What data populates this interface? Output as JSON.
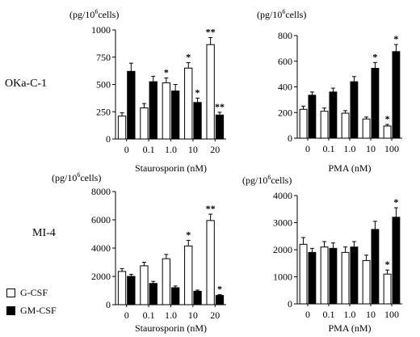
{
  "rows": [
    {
      "label": "OKa-C-1"
    },
    {
      "label": "MI-4"
    }
  ],
  "legend": [
    {
      "name": "G-CSF",
      "color": "#ffffff"
    },
    {
      "name": "GM-CSF",
      "color": "#000000"
    }
  ],
  "unit_label": {
    "prefix": "(pg/10",
    "exp": "6",
    "suffix": "cells)"
  },
  "chart_data": [
    {
      "type": "bar",
      "panel": "OKa-C-1 / Staurosporin",
      "xlabel": "Staurosporin (nM)",
      "categories": [
        "0",
        "0.1",
        "1.0",
        "10",
        "20"
      ],
      "ylim": [
        0,
        1000
      ],
      "yticks": [
        "0",
        "250",
        "500",
        "750",
        "1000"
      ],
      "series": [
        {
          "name": "G-CSF",
          "color": "#ffffff",
          "values": [
            210,
            285,
            515,
            650,
            865
          ],
          "errors": [
            30,
            40,
            45,
            50,
            65
          ],
          "sig": [
            "",
            "",
            "*",
            "*",
            "**"
          ]
        },
        {
          "name": "GM-CSF",
          "color": "#000000",
          "values": [
            620,
            525,
            440,
            335,
            220
          ],
          "errors": [
            75,
            50,
            60,
            40,
            25
          ],
          "sig": [
            "",
            "",
            "",
            "*",
            "**"
          ]
        }
      ]
    },
    {
      "type": "bar",
      "panel": "OKa-C-1 / PMA",
      "xlabel": "PMA (nM)",
      "categories": [
        "0",
        "0.1",
        "1.0",
        "10",
        "100"
      ],
      "ylim": [
        0,
        800
      ],
      "yticks": [
        "0",
        "200",
        "400",
        "600",
        "800"
      ],
      "series": [
        {
          "name": "G-CSF",
          "color": "#ffffff",
          "values": [
            225,
            210,
            195,
            150,
            95
          ],
          "errors": [
            25,
            25,
            20,
            15,
            12
          ],
          "sig": [
            "",
            "",
            "",
            "",
            "*"
          ]
        },
        {
          "name": "GM-CSF",
          "color": "#000000",
          "values": [
            335,
            360,
            440,
            545,
            675
          ],
          "errors": [
            25,
            30,
            40,
            45,
            55
          ],
          "sig": [
            "",
            "",
            "",
            "*",
            "*"
          ]
        }
      ]
    },
    {
      "type": "bar",
      "panel": "MI-4 / Staurosporin",
      "xlabel": "Staurosporin (nM)",
      "categories": [
        "0",
        "0.1",
        "1.0",
        "10",
        "20"
      ],
      "ylim": [
        0,
        8000
      ],
      "yticks": [
        "0",
        "2000",
        "4000",
        "6000",
        "8000"
      ],
      "series": [
        {
          "name": "G-CSF",
          "color": "#ffffff",
          "values": [
            2350,
            2750,
            3250,
            4150,
            5950
          ],
          "errors": [
            200,
            250,
            300,
            400,
            450
          ],
          "sig": [
            "",
            "",
            "",
            "*",
            "**"
          ]
        },
        {
          "name": "GM-CSF",
          "color": "#000000",
          "values": [
            2000,
            1500,
            1200,
            950,
            650
          ],
          "errors": [
            150,
            150,
            120,
            80,
            60
          ],
          "sig": [
            "",
            "",
            "",
            "",
            "*"
          ]
        }
      ]
    },
    {
      "type": "bar",
      "panel": "MI-4 / PMA",
      "xlabel": "PMA (nM)",
      "categories": [
        "0",
        "0.1",
        "1.0",
        "10",
        "100"
      ],
      "ylim": [
        0,
        4000
      ],
      "yticks": [
        "0",
        "1000",
        "2000",
        "3000",
        "4000"
      ],
      "series": [
        {
          "name": "G-CSF",
          "color": "#ffffff",
          "values": [
            2200,
            2100,
            1900,
            1600,
            1100
          ],
          "errors": [
            250,
            200,
            200,
            200,
            150
          ],
          "sig": [
            "",
            "",
            "",
            "",
            "*"
          ]
        },
        {
          "name": "GM-CSF",
          "color": "#000000",
          "values": [
            1900,
            2050,
            2100,
            2750,
            3200
          ],
          "errors": [
            150,
            200,
            200,
            300,
            350
          ],
          "sig": [
            "",
            "",
            "",
            "",
            "*"
          ]
        }
      ]
    }
  ]
}
